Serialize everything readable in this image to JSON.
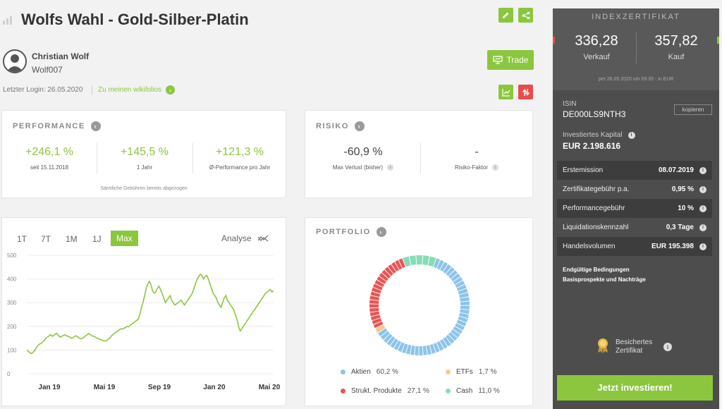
{
  "header": {
    "title": "Wolfs Wahl - Gold-Silber-Platin"
  },
  "trader": {
    "name": "Christian Wolf",
    "handle": "Wolf007",
    "last_login": "Letzter Login: 26.05.2020",
    "link": "Zu meinen wikifolios"
  },
  "trade_button": "Trade",
  "performance": {
    "title": "PERFORMANCE",
    "items": [
      {
        "value": "+246,1 %",
        "label": "seit 15.11.2018"
      },
      {
        "value": "+145,5 %",
        "label": "1 Jahr"
      },
      {
        "value": "+121,3 %",
        "label": "Ø-Performance pro Jahr"
      }
    ],
    "footnote": "Sämtliche Gebühren bereits abgezogen"
  },
  "risk": {
    "title": "RISIKO",
    "items": [
      {
        "value": "-60,9 %",
        "label": "Max Verlust (bisher)"
      },
      {
        "value": "-",
        "label": "Risiko-Faktor"
      }
    ]
  },
  "chart_panel": {
    "tabs": [
      "1T",
      "7T",
      "1M",
      "1J",
      "Max"
    ],
    "active_tab": "Max",
    "analyse_label": "Analyse"
  },
  "chart_data": {
    "type": "line",
    "x_ticks": [
      "Jan 19",
      "Mai 19",
      "Sep 19",
      "Jan 20",
      "Mai 20"
    ],
    "y_ticks": [
      0,
      100,
      200,
      300,
      400,
      500
    ],
    "ylim": [
      0,
      500
    ],
    "grid": true,
    "color": "#8cc63f",
    "series": [
      {
        "values": [
          100,
          95,
          88,
          85,
          92,
          98,
          110,
          120,
          125,
          128,
          135,
          140,
          150,
          155,
          160,
          165,
          158,
          162,
          168,
          170,
          160,
          155,
          158,
          162,
          165,
          160,
          158,
          155,
          150,
          152,
          158,
          160,
          155,
          150,
          148,
          150,
          155,
          160,
          165,
          170,
          165,
          160,
          158,
          155,
          150,
          148,
          145,
          142,
          140,
          138,
          140,
          145,
          150,
          158,
          165,
          170,
          175,
          180,
          185,
          190,
          188,
          192,
          195,
          200,
          198,
          205,
          210,
          215,
          220,
          225,
          230,
          250,
          280,
          300,
          330,
          360,
          380,
          390,
          375,
          350,
          340,
          345,
          360,
          370,
          355,
          340,
          320,
          300,
          310,
          320,
          330,
          310,
          300,
          290,
          295,
          300,
          305,
          310,
          300,
          290,
          300,
          310,
          320,
          330,
          340,
          360,
          380,
          400,
          410,
          420,
          415,
          400,
          410,
          415,
          400,
          380,
          360,
          340,
          330,
          320,
          300,
          290,
          280,
          300,
          320,
          330,
          310,
          300,
          290,
          280,
          270,
          250,
          230,
          200,
          180,
          190,
          200,
          210,
          220,
          230,
          240,
          250,
          260,
          270,
          280,
          290,
          300,
          310,
          320,
          330,
          340,
          345,
          350,
          355,
          345,
          350
        ]
      }
    ]
  },
  "portfolio": {
    "title": "PORTFOLIO",
    "legend": [
      {
        "name": "Aktien",
        "pct": "60,2 %",
        "color": "#8cc4ea",
        "share": 60.2
      },
      {
        "name": "ETFs",
        "pct": "1,7 %",
        "color": "#f5c98a",
        "share": 1.7
      },
      {
        "name": "Strukt. Produkte",
        "pct": "27,1 %",
        "color": "#e85555",
        "share": 27.1
      },
      {
        "name": "Cash",
        "pct": "11,0 %",
        "color": "#86dcb8",
        "share": 11.0
      }
    ]
  },
  "sidebar": {
    "title": "INDEXZERTIFIKAT",
    "sell_price": "336,28",
    "sell_label": "Verkauf",
    "buy_price": "357,82",
    "buy_label": "Kauf",
    "timestamp": "per 26.05.2020 um 09:35 - in EUR",
    "isin_label": "ISIN",
    "isin": "DE000LS9NTH3",
    "copy_label": "kopieren",
    "capital_label": "Investiertes Kapital",
    "capital": "EUR 2.198.616",
    "rows": [
      {
        "label": "Erstemission",
        "value": "08.07.2019",
        "info": true
      },
      {
        "label": "Zertifikategebühr p.a.",
        "value": "0,95 %",
        "info": true
      },
      {
        "label": "Performancegebühr",
        "value": "10 %",
        "info": true
      },
      {
        "label": "Liquidationskennzahl",
        "value": "0,3 Tage",
        "info": true
      },
      {
        "label": "Handelsvolumen",
        "value": "EUR 195.398",
        "info": true
      }
    ],
    "links": [
      "Endgültige Bedingungen",
      "Basisprospekte und Nachträge"
    ],
    "secured_label_1": "Besichertes",
    "secured_label_2": "Zertifikat",
    "invest_button": "Jetzt investieren!"
  }
}
